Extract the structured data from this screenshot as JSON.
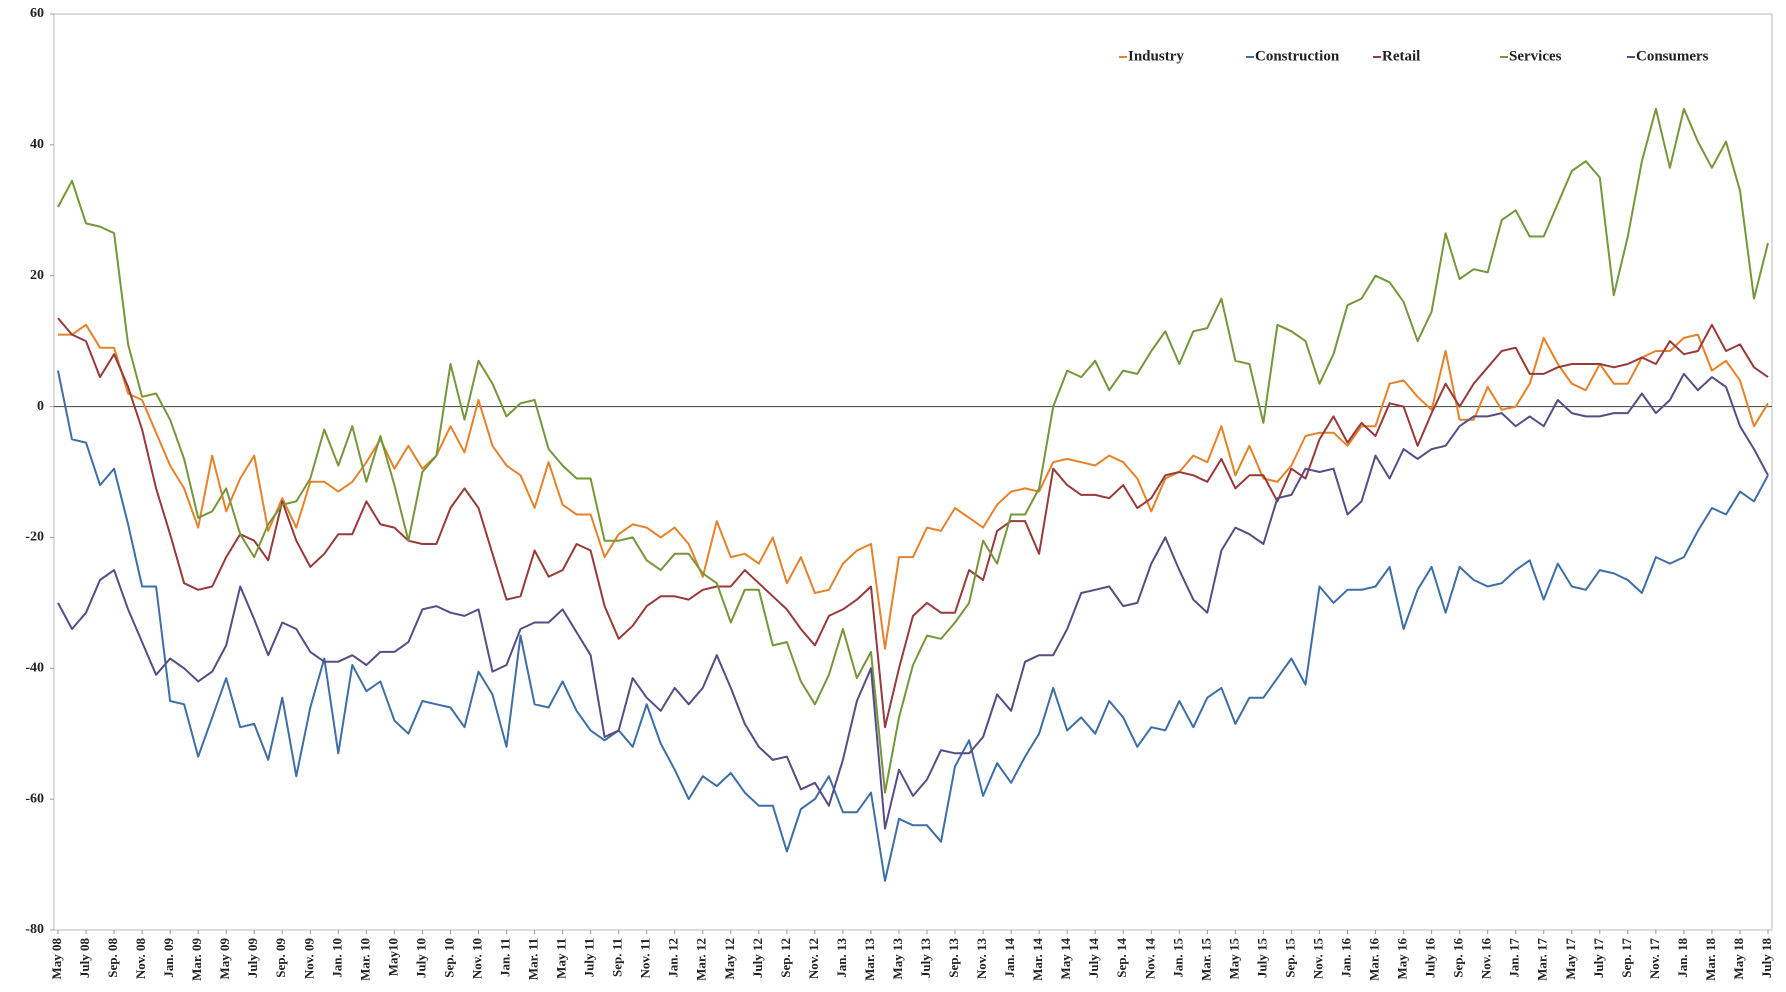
{
  "chart_data": {
    "type": "line",
    "categories": [
      "May 08",
      null,
      "July 08",
      null,
      "Sep. 08",
      null,
      "Nov. 08",
      null,
      "Jan. 09",
      null,
      "Mar. 09",
      null,
      "May 09",
      null,
      "July 09",
      null,
      "Sep. 09",
      null,
      "Nov. 09",
      null,
      "Jan. 10",
      null,
      "Mar. 10",
      null,
      "May10",
      null,
      "July 10",
      null,
      "Sep. 10",
      null,
      "Nov. 10",
      null,
      "Jan. 11",
      null,
      "Mar. 11",
      null,
      "May 11",
      null,
      "July 11",
      null,
      "Sep. 11",
      null,
      "Nov. 11",
      null,
      "Jan. 12",
      null,
      "Mar. 12",
      null,
      "May 12",
      null,
      "July 12",
      null,
      "Sep. 12",
      null,
      "Nov. 12",
      null,
      "Jan. 13",
      null,
      "Mar. 13",
      null,
      "May 13",
      null,
      "July 13",
      null,
      "Sep. 13",
      null,
      "Nov. 13",
      null,
      "Jan. 14",
      null,
      "Mar. 14",
      null,
      "May 14",
      null,
      "July 14",
      null,
      "Sep. 14",
      null,
      "Nov. 14",
      null,
      "Jan. 15",
      null,
      "Mar. 15",
      null,
      "May 15",
      null,
      "July 15",
      null,
      "Sep. 15",
      null,
      "Nov. 15",
      null,
      "Jan. 16",
      null,
      "Mar. 16",
      null,
      "May 16",
      null,
      "July 16",
      null,
      "Sep. 16",
      null,
      "Nov. 16",
      null,
      "Jan. 17",
      null,
      "Mar. 17",
      null,
      "May 17",
      null,
      "July 17",
      null,
      "Sep. 17",
      null,
      "Nov. 17",
      null,
      "Jan. 18",
      null,
      "Mar. 18",
      null,
      "May 18",
      null,
      "July 18"
    ],
    "series": [
      {
        "name": "Industry",
        "color": "#e5822a",
        "values": [
          11,
          11,
          12.5,
          9,
          9,
          2,
          1,
          -4,
          -9,
          -12.5,
          -18.5,
          -7.5,
          -16,
          -11,
          -7.5,
          -19,
          -14,
          -18.5,
          -11.5,
          -11.5,
          -13,
          -11.5,
          -8.5,
          -5,
          -9.5,
          -6,
          -9.5,
          -7.5,
          -3,
          -7,
          1,
          -6,
          -9,
          -10.5,
          -15.5,
          -8.5,
          -15,
          -16.5,
          -16.5,
          -23,
          -19.5,
          -18,
          -18.5,
          -20,
          -18.5,
          -21,
          -26,
          -17.5,
          -23,
          -22.5,
          -24,
          -20,
          -27,
          -23,
          -28.5,
          -28,
          -24,
          -22,
          -21,
          -37,
          -23,
          -23,
          -18.5,
          -19,
          -15.5,
          -17,
          -18.5,
          -15,
          -13,
          -12.5,
          -13,
          -8.5,
          -8,
          -8.5,
          -9,
          -7.5,
          -8.5,
          -11,
          -16,
          -11,
          -10,
          -7.5,
          -8.5,
          -3,
          -10.5,
          -6,
          -11,
          -11.5,
          -9,
          -4.5,
          -4,
          -4,
          -6,
          -3,
          -3,
          3.5,
          4,
          1.5,
          -0.5,
          8.5,
          -2,
          -2,
          3,
          -0.5,
          0,
          3.5,
          10.5,
          6.5,
          3.5,
          2.5,
          6.5,
          3.5,
          3.5,
          7.5,
          8.5,
          8.5,
          10.5,
          11,
          5.5,
          7,
          4,
          -3,
          0.5
        ]
      },
      {
        "name": "Construction",
        "color": "#3d6ea5",
        "values": [
          5.5,
          -5,
          -5.5,
          -12,
          -9.5,
          -18,
          -27.5,
          -27.5,
          -45,
          -45.5,
          -53.5,
          -47.5,
          -41.5,
          -49,
          -48.5,
          -54,
          -44.5,
          -56.5,
          -46,
          -38.5,
          -53,
          -39.5,
          -43.5,
          -42,
          -48,
          -50,
          -45,
          -45.5,
          -46,
          -49,
          -40.5,
          -44,
          -52,
          -35,
          -45.5,
          -46,
          -42,
          -46.5,
          -49.5,
          -51,
          -49.5,
          -52,
          -45.5,
          -51.5,
          -55.5,
          -60,
          -56.5,
          -58,
          -56,
          -59,
          -61,
          -61,
          -68,
          -61.5,
          -60,
          -56.5,
          -62,
          -62,
          -59,
          -72.5,
          -63,
          -64,
          -64,
          -66.5,
          -55,
          -51,
          -59.5,
          -54.5,
          -57.5,
          -53.5,
          -50,
          -43,
          -49.5,
          -47.5,
          -50,
          -45,
          -47.5,
          -52,
          -49,
          -49.5,
          -45,
          -49,
          -44.5,
          -43,
          -48.5,
          -44.5,
          -44.5,
          -41.5,
          -38.5,
          -42.5,
          -27.5,
          -30,
          -28,
          -28,
          -27.5,
          -24.5,
          -34,
          -28,
          -24.5,
          -31.5,
          -24.5,
          -26.5,
          -27.5,
          -27,
          -25,
          -23.5,
          -29.5,
          -24,
          -27.5,
          -28,
          -25,
          -25.5,
          -26.5,
          -28.5,
          -23,
          -24,
          -23,
          -19,
          -15.5,
          -16.5,
          -13,
          -14.5,
          -10.5
        ]
      },
      {
        "name": "Retail",
        "color": "#983a3a",
        "values": [
          13.5,
          11,
          10,
          4.5,
          8,
          3,
          -3.5,
          -12.5,
          -19.5,
          -27,
          -28,
          -27.5,
          -23,
          -19.5,
          -20.5,
          -23.5,
          -14.5,
          -20.5,
          -24.5,
          -22.5,
          -19.5,
          -19.5,
          -14.5,
          -18,
          -18.5,
          -20.5,
          -21,
          -21,
          -15.5,
          -12.5,
          -15.5,
          -22.5,
          -29.5,
          -29,
          -22,
          -26,
          -25,
          -21,
          -22,
          -30.5,
          -35.5,
          -33.5,
          -30.5,
          -29,
          -29,
          -29.5,
          -28,
          -27.5,
          -27.5,
          -25,
          -27,
          -29,
          -31,
          -34,
          -36.5,
          -32,
          -31,
          -29.5,
          -27.5,
          -49,
          -40,
          -32,
          -30,
          -31.5,
          -31.5,
          -25,
          -26.5,
          -19,
          -17.5,
          -17.5,
          -22.5,
          -9.5,
          -12,
          -13.5,
          -13.5,
          -14,
          -12,
          -15.5,
          -14,
          -10.5,
          -10,
          -10.5,
          -11.5,
          -8,
          -12.5,
          -10.5,
          -10.5,
          -14.5,
          -9.5,
          -11,
          -5,
          -1.5,
          -5.5,
          -2.5,
          -4.5,
          0.5,
          0,
          -6,
          -1,
          3.5,
          0,
          3.5,
          6,
          8.5,
          9,
          5,
          5,
          6,
          6.5,
          6.5,
          6.5,
          6,
          6.5,
          7.5,
          6.5,
          10,
          8,
          8.5,
          12.5,
          8.5,
          9.5,
          6,
          4.5
        ]
      },
      {
        "name": "Services",
        "color": "#76963a",
        "values": [
          30.5,
          34.5,
          28,
          27.5,
          26.5,
          9.5,
          1.5,
          2,
          -2,
          -8,
          -17,
          -16,
          -12.5,
          -19.5,
          -23,
          -18,
          -15,
          -14.5,
          -11,
          -3.5,
          -9,
          -3,
          -11.5,
          -4.5,
          -12,
          -20.5,
          -10,
          -7.5,
          6.5,
          -2,
          7,
          3.5,
          -1.5,
          0.5,
          1,
          -6.5,
          -9,
          -11,
          -11,
          -20.5,
          -20.5,
          -20,
          -23.5,
          -25,
          -22.5,
          -22.5,
          -25.5,
          -27,
          -33,
          -28,
          -28,
          -36.5,
          -36,
          -42,
          -45.5,
          -41,
          -34,
          -41.5,
          -37.5,
          -59,
          -47.5,
          -39.5,
          -35,
          -35.5,
          -33,
          -30,
          -20.5,
          -24,
          -16.5,
          -16.5,
          -12.5,
          0,
          5.5,
          4.5,
          7,
          2.5,
          5.5,
          5,
          8.5,
          11.5,
          6.5,
          11.5,
          12,
          16.5,
          7,
          6.5,
          -2.5,
          12.5,
          11.5,
          10,
          3.5,
          8,
          15.5,
          16.5,
          20,
          19,
          16,
          10,
          14.5,
          26.5,
          19.5,
          21,
          20.5,
          28.5,
          30,
          26,
          26,
          31,
          36,
          37.5,
          35,
          17,
          26,
          37.5,
          45.5,
          36.5,
          45.5,
          40.5,
          36.5,
          40.5,
          33,
          16.5,
          25
        ]
      },
      {
        "name": "Consumers",
        "color": "#5a4b85",
        "values": [
          -30,
          -34,
          -31.5,
          -26.5,
          -25,
          -31,
          -36,
          -41,
          -38.5,
          -40,
          -42,
          -40.5,
          -36.5,
          -27.5,
          -32.5,
          -38,
          -33,
          -34,
          -37.5,
          -39,
          -39,
          -38,
          -39.5,
          -37.5,
          -37.5,
          -36,
          -31,
          -30.5,
          -31.5,
          -32,
          -31,
          -40.5,
          -39.5,
          -34,
          -33,
          -33,
          -31,
          -34.5,
          -38,
          -50.5,
          -49.5,
          -41.5,
          -44.5,
          -46.5,
          -43,
          -45.5,
          -43,
          -38,
          -43,
          -48.5,
          -52,
          -54,
          -53.5,
          -58.5,
          -57.5,
          -61,
          -54,
          -45,
          -40,
          -64.5,
          -55.5,
          -59.5,
          -57,
          -52.5,
          -53,
          -53,
          -50.5,
          -44,
          -46.5,
          -39,
          -38,
          -38,
          -34,
          -28.5,
          -28,
          -27.5,
          -30.5,
          -30,
          -24,
          -20,
          -25,
          -29.5,
          -31.5,
          -22,
          -18.5,
          -19.5,
          -21,
          -14,
          -13.5,
          -9.5,
          -10,
          -9.5,
          -16.5,
          -14.5,
          -7.5,
          -11,
          -6.5,
          -8,
          -6.5,
          -6,
          -3,
          -1.5,
          -1.5,
          -1,
          -3,
          -1.5,
          -3,
          1,
          -1,
          -1.5,
          -1.5,
          -1,
          -1,
          2,
          -1,
          1,
          5,
          2.5,
          4.5,
          3,
          -3,
          -6.5,
          -10.5
        ]
      }
    ],
    "ylim": [
      -80,
      60
    ],
    "yticks": [
      -80,
      -60,
      -40,
      -20,
      0,
      20,
      40,
      60
    ],
    "grid": false,
    "legend": "upper right"
  }
}
